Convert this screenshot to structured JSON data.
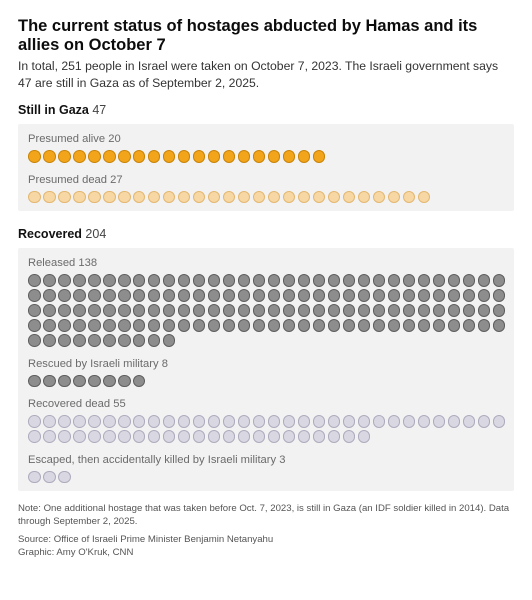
{
  "title": "The current status of hostages abducted by Hamas and its allies on October 7",
  "intro": "In total, 251 people in Israel were taken on October 7, 2023. The Israeli government says 47 are still in Gaza as of September 2, 2025.",
  "sections": {
    "gaza": {
      "title": "Still in Gaza",
      "count": "47",
      "groups": {
        "alive": {
          "label": "Presumed alive",
          "count": "20"
        },
        "dead": {
          "label": "Presumed dead",
          "count": "27"
        }
      }
    },
    "recovered": {
      "title": "Recovered",
      "count": "204",
      "groups": {
        "released": {
          "label": "Released",
          "count": "138"
        },
        "rescued": {
          "label": "Rescued by Israeli military",
          "count": "8"
        },
        "dead": {
          "label": "Recovered dead",
          "count": "55"
        },
        "escaped": {
          "label": "Escaped, then accidentally killed by Israeli military",
          "count": "3"
        }
      }
    }
  },
  "note": "Note: One additional hostage that was taken before Oct. 7, 2023, is still in Gaza (an IDF soldier killed in 2014). Data through September 2, 2025.",
  "source_line": "Source: Office of Israeli Prime Minister Benjamin Netanyahu",
  "graphic_line": "Graphic: Amy O'Kruk, CNN",
  "colors": {
    "presumed_alive": "#f2a51a",
    "presumed_dead": "#f7d8a4",
    "released": "#8d8d8d",
    "rescued": "#8d8d8d",
    "recovered_dead": "#d9d8e2",
    "escaped": "#d9d8e2",
    "panel_bg": "#f2f2f2"
  },
  "chart_data": {
    "type": "unit",
    "title": "The current status of hostages abducted by Hamas and its allies on October 7",
    "groups": [
      {
        "section": "Still in Gaza",
        "name": "Presumed alive",
        "value": 20
      },
      {
        "section": "Still in Gaza",
        "name": "Presumed dead",
        "value": 27
      },
      {
        "section": "Recovered",
        "name": "Released",
        "value": 138
      },
      {
        "section": "Recovered",
        "name": "Rescued by Israeli military",
        "value": 8
      },
      {
        "section": "Recovered",
        "name": "Recovered dead",
        "value": 55
      },
      {
        "section": "Recovered",
        "name": "Escaped, then accidentally killed by Israeli military",
        "value": 3
      }
    ],
    "totals": {
      "Still in Gaza": 47,
      "Recovered": 204,
      "All": 251
    }
  }
}
